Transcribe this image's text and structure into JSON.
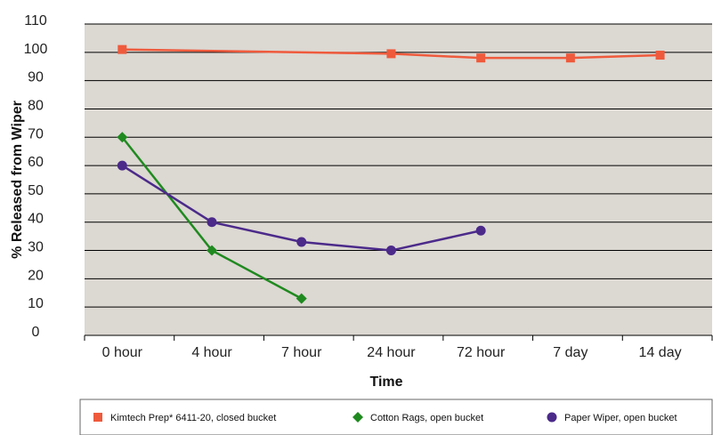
{
  "chart_data": {
    "type": "line",
    "title": "",
    "xlabel": "Time",
    "ylabel": "% Released from Wiper",
    "categories": [
      "0 hour",
      "4 hour",
      "7 hour",
      "24 hour",
      "72 hour",
      "7 day",
      "14 day"
    ],
    "yticks": [
      "0",
      "10",
      "20",
      "30",
      "40",
      "50",
      "60",
      "70",
      "80",
      "90",
      "100",
      "110"
    ],
    "ylim": [
      0,
      110
    ],
    "grid": "horizontal",
    "legend_position": "bottom",
    "series": [
      {
        "name": "Kimtech Prep* 6411-20, closed bucket",
        "color": "#ef5a3c",
        "marker": "square",
        "values": [
          101,
          null,
          null,
          99.5,
          98,
          98,
          99
        ]
      },
      {
        "name": "Cotton Rags, open bucket",
        "color": "#1f8a1f",
        "marker": "diamond",
        "values": [
          70,
          30,
          13,
          null,
          null,
          null,
          null
        ]
      },
      {
        "name": "Paper Wiper, open bucket",
        "color": "#4b2a8a",
        "marker": "circle",
        "values": [
          60,
          40,
          33,
          30,
          37,
          null,
          null
        ]
      }
    ]
  }
}
